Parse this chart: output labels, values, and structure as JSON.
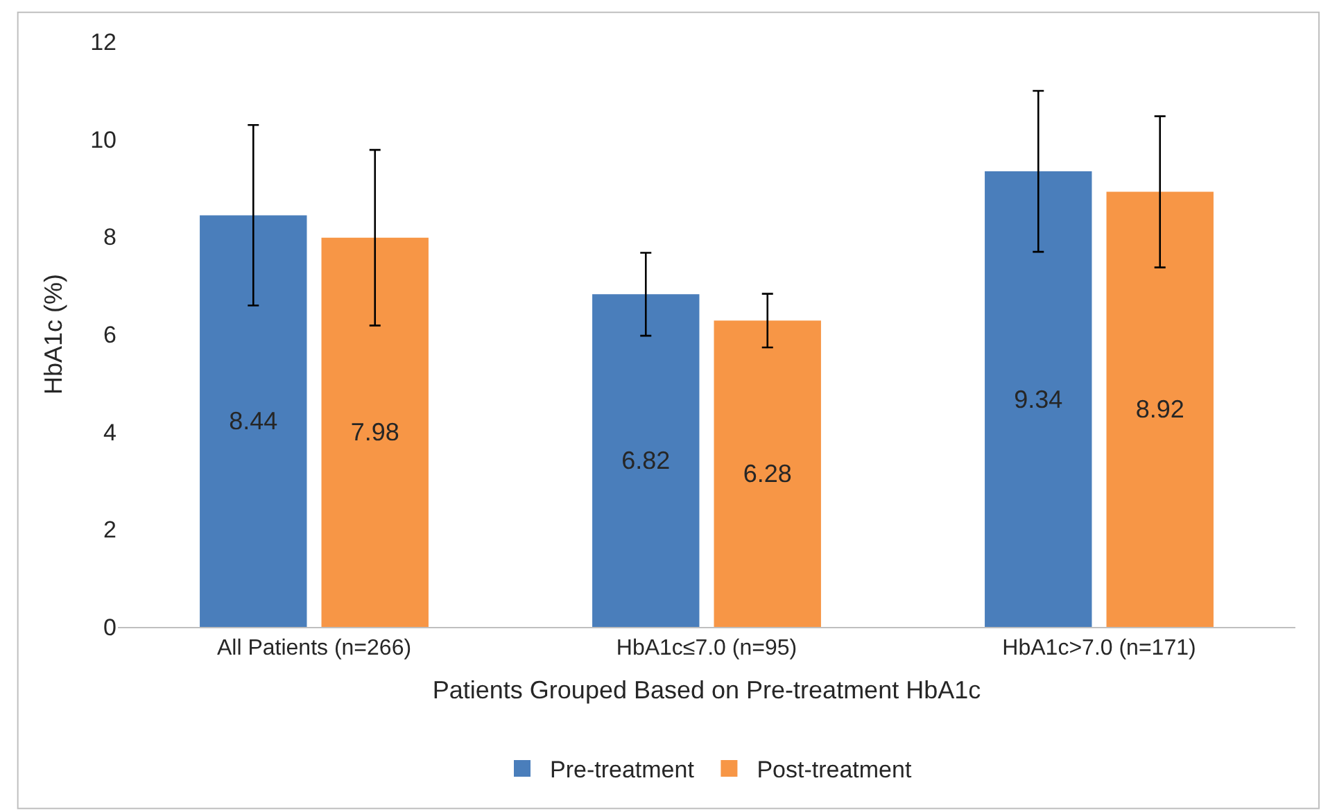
{
  "chart_data": {
    "type": "bar",
    "xlabel": "Patients Grouped Based on Pre-treatment HbA1c",
    "ylabel": "HbA1c (%)",
    "categories": [
      "All Patients (n=266)",
      "HbA1c≤7.0 (n=95)",
      "HbA1c>7.0 (n=171)"
    ],
    "series": [
      {
        "name": "Pre-treatment",
        "color": "#4a7ebb",
        "values": [
          8.44,
          6.82,
          9.34
        ],
        "errors": [
          1.85,
          0.85,
          1.65
        ]
      },
      {
        "name": "Post-treatment",
        "color": "#f79646",
        "values": [
          7.98,
          6.28,
          8.92
        ],
        "errors": [
          1.8,
          0.55,
          1.55
        ]
      }
    ],
    "ylim": [
      0,
      12
    ],
    "yticks": [
      0,
      2,
      4,
      6,
      8,
      10,
      12
    ],
    "legend": "bottom",
    "data_labels": true
  }
}
